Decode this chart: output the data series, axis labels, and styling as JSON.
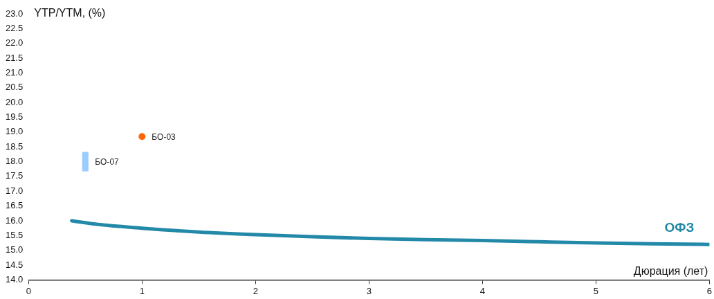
{
  "chart_data": {
    "type": "scatter",
    "ylabel": "YTP/YTM, (%)",
    "xlabel": "Дюрация (лет)",
    "xlim": [
      0,
      6
    ],
    "xticks": [
      0,
      1,
      2,
      3,
      4,
      5,
      6
    ],
    "ylim": [
      14,
      23
    ],
    "yticks": [
      {
        "value": 14,
        "label": "14.0"
      },
      {
        "value": 14.5,
        "label": "14.5"
      },
      {
        "value": 15,
        "label": "15.0"
      },
      {
        "value": 15.5,
        "label": "15.5"
      },
      {
        "value": 16,
        "label": "16.0"
      },
      {
        "value": 16.5,
        "label": "16.5"
      },
      {
        "value": 17,
        "label": "17.0"
      },
      {
        "value": 17.5,
        "label": "17.5"
      },
      {
        "value": 18,
        "label": "18.0"
      },
      {
        "value": 18.5,
        "label": "18.5"
      },
      {
        "value": 19,
        "label": "19.0"
      },
      {
        "value": 19.5,
        "label": "19.5"
      },
      {
        "value": 20,
        "label": "20.0"
      },
      {
        "value": 20.5,
        "label": "20.5"
      },
      {
        "value": 21,
        "label": "21.0"
      },
      {
        "value": 21.5,
        "label": "21.5"
      },
      {
        "value": 22,
        "label": "22.0"
      },
      {
        "value": 22.5,
        "label": "22.5"
      },
      {
        "value": 23,
        "label": "23.0"
      }
    ],
    "grid": false,
    "legend": false,
    "series": [
      {
        "name": "ОФЗ",
        "type": "line",
        "color": "#2389a8",
        "marker": "none",
        "x": [
          0.38,
          0.6,
          1,
          1.5,
          2,
          2.5,
          3,
          3.5,
          4,
          4.5,
          5,
          5.5,
          6
        ],
        "values": [
          16.0,
          15.88,
          15.75,
          15.62,
          15.53,
          15.46,
          15.4,
          15.36,
          15.33,
          15.29,
          15.25,
          15.22,
          15.2
        ]
      },
      {
        "name": "БО-03",
        "type": "scatter",
        "color": "#ff6600",
        "marker": "circle",
        "x": [
          1.0
        ],
        "values": [
          18.85
        ]
      },
      {
        "name": "БО-07",
        "type": "scatter",
        "color": "#99ccff",
        "marker": "square",
        "x": [
          0.5
        ],
        "values": [
          18.0
        ]
      }
    ]
  }
}
